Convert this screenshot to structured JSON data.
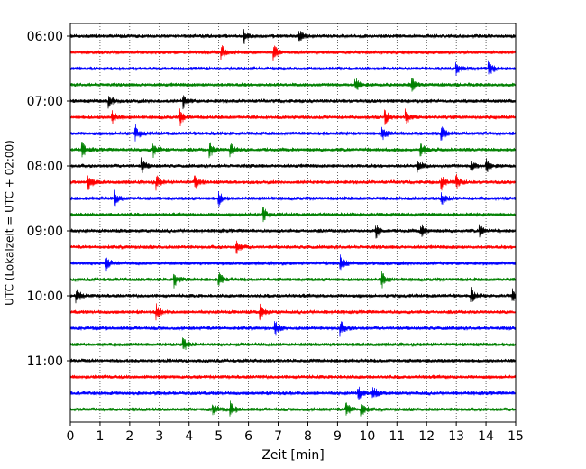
{
  "chart_data": {
    "type": "line",
    "title": "",
    "xlabel": "Zeit  [min]",
    "ylabel": "UTC (Lokalzeit = UTC + 02:00)",
    "xlim": [
      0,
      15
    ],
    "x_ticks": [
      "0",
      "1",
      "2",
      "3",
      "4",
      "5",
      "6",
      "7",
      "8",
      "9",
      "10",
      "11",
      "12",
      "13",
      "14",
      "15"
    ],
    "grid": "vertical dotted",
    "legend": "none",
    "row_start_times": [
      "06:00",
      "06:15",
      "06:30",
      "06:45",
      "07:00",
      "07:15",
      "07:30",
      "07:45",
      "08:00",
      "08:15",
      "08:30",
      "08:45",
      "09:00",
      "09:15",
      "09:30",
      "09:45",
      "10:00",
      "10:15",
      "10:30",
      "10:45",
      "11:00",
      "11:15",
      "11:30",
      "11:45"
    ],
    "y_tick_labels": [
      "06:00",
      "07:00",
      "08:00",
      "09:00",
      "10:00",
      "11:00"
    ],
    "trace_colors": [
      "#000000",
      "#ff0000",
      "#0000ff",
      "#008000"
    ],
    "events": [
      {
        "row": 0,
        "minutes": [
          5.85,
          7.7
        ]
      },
      {
        "row": 1,
        "minutes": [
          5.1,
          6.85
        ]
      },
      {
        "row": 2,
        "minutes": [
          13.0,
          14.1
        ]
      },
      {
        "row": 3,
        "minutes": [
          11.5,
          9.6
        ]
      },
      {
        "row": 4,
        "minutes": [
          1.3,
          3.8
        ]
      },
      {
        "row": 5,
        "minutes": [
          1.4,
          3.7,
          10.6,
          11.3
        ]
      },
      {
        "row": 6,
        "minutes": [
          2.2,
          10.5,
          12.5
        ]
      },
      {
        "row": 7,
        "minutes": [
          0.4,
          2.8,
          4.7,
          5.4,
          11.8
        ]
      },
      {
        "row": 8,
        "minutes": [
          2.4,
          11.7,
          13.5,
          14.0
        ]
      },
      {
        "row": 9,
        "minutes": [
          0.6,
          2.9,
          4.2,
          12.5,
          13.0
        ]
      },
      {
        "row": 10,
        "minutes": [
          1.5,
          5.0,
          12.5
        ]
      },
      {
        "row": 11,
        "minutes": [
          6.5
        ]
      },
      {
        "row": 12,
        "minutes": [
          10.3,
          11.8,
          13.8
        ]
      },
      {
        "row": 13,
        "minutes": [
          5.6
        ]
      },
      {
        "row": 14,
        "minutes": [
          1.2,
          9.1
        ]
      },
      {
        "row": 15,
        "minutes": [
          3.5,
          5.0,
          10.5
        ]
      },
      {
        "row": 16,
        "minutes": [
          0.2,
          13.5,
          14.9
        ]
      },
      {
        "row": 17,
        "minutes": [
          2.9,
          6.4
        ]
      },
      {
        "row": 18,
        "minutes": [
          6.9,
          9.1
        ]
      },
      {
        "row": 19,
        "minutes": [
          3.8
        ]
      },
      {
        "row": 20,
        "minutes": []
      },
      {
        "row": 21,
        "minutes": []
      },
      {
        "row": 22,
        "minutes": [
          9.7,
          10.2
        ]
      },
      {
        "row": 23,
        "minutes": [
          4.8,
          5.4,
          9.3,
          9.8
        ]
      }
    ]
  }
}
